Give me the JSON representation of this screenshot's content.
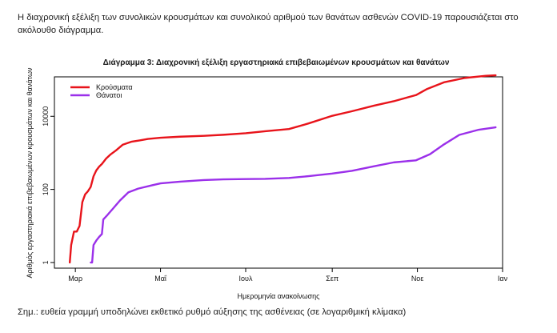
{
  "intro_text": "Η διαχρονική εξέλιξη των συνολικών κρουσμάτων και συνολικού αριθμού των θανάτων ασθενών COVID-19 παρουσιάζεται στο ακόλουθο διάγραμμα.",
  "note_text": "Σημ.: ευθεία γραμμή υποδηλώνει εκθετικό ρυθμό αύξησης της ασθένειας (σε λογαριθμική κλίμακα)",
  "chart_data": {
    "type": "line",
    "title": "Διάγραμμα 3: Διαχρονική εξέλιξη εργαστηριακά επιβεβαιωμένων κρουσμάτων και θανάτων",
    "xlabel": "Ημερομηνία ανακοίνωσης",
    "ylabel": "Αριθμός εργαστηριακά επιβεβαιωμένων κρουσμάτων και θανάτων",
    "y_scale": "log",
    "ylim": [
      0.7,
      120000
    ],
    "xlim": [
      "2020-02-15",
      "2021-01-01"
    ],
    "x_ticks": [
      {
        "date": "2020-03-01",
        "label": "Μαρ"
      },
      {
        "date": "2020-05-01",
        "label": "Μαΐ"
      },
      {
        "date": "2020-07-01",
        "label": "Ιουλ"
      },
      {
        "date": "2020-09-01",
        "label": "Σεπ"
      },
      {
        "date": "2020-11-01",
        "label": "Νοε"
      },
      {
        "date": "2021-01-01",
        "label": "Ιαν"
      }
    ],
    "y_ticks": [
      {
        "value": 1,
        "label": "1"
      },
      {
        "value": 100,
        "label": "100"
      },
      {
        "value": 10000,
        "label": "10000"
      }
    ],
    "legend_position": "top-left",
    "grid": false,
    "series": [
      {
        "name": "Κρούσματα",
        "color": "#e8141b",
        "points": [
          [
            "2020-02-26",
            1
          ],
          [
            "2020-02-27",
            3
          ],
          [
            "2020-02-29",
            7
          ],
          [
            "2020-03-02",
            7
          ],
          [
            "2020-03-04",
            10
          ],
          [
            "2020-03-06",
            45
          ],
          [
            "2020-03-08",
            73
          ],
          [
            "2020-03-10",
            89
          ],
          [
            "2020-03-12",
            117
          ],
          [
            "2020-03-14",
            228
          ],
          [
            "2020-03-16",
            331
          ],
          [
            "2020-03-18",
            418
          ],
          [
            "2020-03-20",
            495
          ],
          [
            "2020-03-23",
            695
          ],
          [
            "2020-03-26",
            892
          ],
          [
            "2020-03-30",
            1156
          ],
          [
            "2020-04-04",
            1673
          ],
          [
            "2020-04-10",
            2011
          ],
          [
            "2020-04-16",
            2192
          ],
          [
            "2020-04-22",
            2401
          ],
          [
            "2020-05-01",
            2591
          ],
          [
            "2020-05-15",
            2770
          ],
          [
            "2020-06-01",
            2918
          ],
          [
            "2020-06-15",
            3121
          ],
          [
            "2020-07-01",
            3432
          ],
          [
            "2020-07-15",
            3910
          ],
          [
            "2020-08-01",
            4477
          ],
          [
            "2020-08-15",
            6381
          ],
          [
            "2020-09-01",
            10317
          ],
          [
            "2020-09-15",
            13730
          ],
          [
            "2020-10-01",
            19613
          ],
          [
            "2020-10-15",
            25802
          ],
          [
            "2020-10-31",
            38052
          ],
          [
            "2020-11-08",
            56000
          ],
          [
            "2020-11-20",
            85000
          ],
          [
            "2020-12-05",
            112000
          ],
          [
            "2020-12-20",
            128000
          ],
          [
            "2020-12-27",
            132000
          ]
        ]
      },
      {
        "name": "Θάνατοι",
        "color": "#9b30ea",
        "points": [
          [
            "2020-03-12",
            1
          ],
          [
            "2020-03-13",
            1
          ],
          [
            "2020-03-14",
            3
          ],
          [
            "2020-03-16",
            4
          ],
          [
            "2020-03-18",
            5
          ],
          [
            "2020-03-20",
            6
          ],
          [
            "2020-03-21",
            15
          ],
          [
            "2020-03-24",
            20
          ],
          [
            "2020-03-28",
            30
          ],
          [
            "2020-04-02",
            50
          ],
          [
            "2020-04-08",
            83
          ],
          [
            "2020-04-15",
            105
          ],
          [
            "2020-04-25",
            130
          ],
          [
            "2020-05-01",
            146
          ],
          [
            "2020-05-15",
            163
          ],
          [
            "2020-06-01",
            180
          ],
          [
            "2020-06-15",
            188
          ],
          [
            "2020-07-01",
            192
          ],
          [
            "2020-07-15",
            194
          ],
          [
            "2020-08-01",
            206
          ],
          [
            "2020-08-15",
            230
          ],
          [
            "2020-09-01",
            271
          ],
          [
            "2020-09-15",
            321
          ],
          [
            "2020-10-01",
            429
          ],
          [
            "2020-10-15",
            548
          ],
          [
            "2020-10-31",
            625
          ],
          [
            "2020-11-10",
            920
          ],
          [
            "2020-11-20",
            1700
          ],
          [
            "2020-12-01",
            3100
          ],
          [
            "2020-12-15",
            4300
          ],
          [
            "2020-12-27",
            5000
          ]
        ]
      }
    ]
  }
}
